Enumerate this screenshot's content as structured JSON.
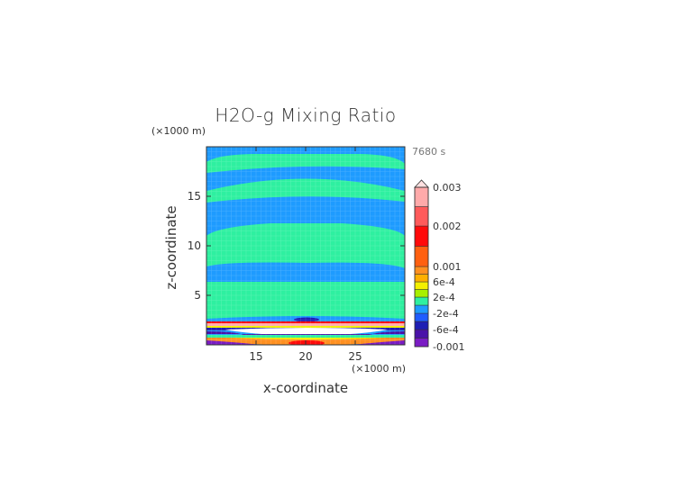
{
  "chart_data": {
    "type": "heatmap",
    "subtype": "filled-contour",
    "title": "H2O-g Mixing Ratio",
    "xlabel": "x-coordinate",
    "ylabel": "z-coordinate",
    "x_unit": "(×1000 m)",
    "y_unit": "(×1000 m)",
    "time_label": "7680 s",
    "xlim": [
      10,
      30
    ],
    "ylim": [
      0,
      20
    ],
    "x_ticks": [
      "15",
      "20",
      "25"
    ],
    "x_tick_values": [
      15,
      20,
      25
    ],
    "y_ticks": [
      "5",
      "10",
      "15"
    ],
    "y_tick_values": [
      5,
      10,
      15
    ],
    "colorbar": {
      "labels": [
        "0.003",
        "0.002",
        "0.001",
        "6e-4",
        "2e-4",
        "-2e-4",
        "-6e-4",
        "-0.001"
      ],
      "label_values": [
        0.003,
        0.002,
        0.001,
        0.0006,
        0.0002,
        -0.0002,
        -0.0006,
        -0.001
      ],
      "extend": "max",
      "bands": [
        {
          "from": -0.001,
          "to": -0.0008,
          "color": "#7a1cc4"
        },
        {
          "from": -0.0008,
          "to": -0.0006,
          "color": "#4a12a8"
        },
        {
          "from": -0.0006,
          "to": -0.0004,
          "color": "#1e1eb4"
        },
        {
          "from": -0.0004,
          "to": -0.0002,
          "color": "#1f5cff"
        },
        {
          "from": -0.0002,
          "to": 0.0,
          "color": "#1e9bff"
        },
        {
          "from": 0.0,
          "to": 0.0002,
          "color": "#2ef0a0"
        },
        {
          "from": 0.0002,
          "to": 0.0004,
          "color": "#a8f000"
        },
        {
          "from": 0.0004,
          "to": 0.0006,
          "color": "#f4f000"
        },
        {
          "from": 0.0006,
          "to": 0.0008,
          "color": "#ffb000"
        },
        {
          "from": 0.0008,
          "to": 0.001,
          "color": "#ff9020"
        },
        {
          "from": 0.001,
          "to": 0.0015,
          "color": "#ff6010"
        },
        {
          "from": 0.0015,
          "to": 0.002,
          "color": "#ff0a0a"
        },
        {
          "from": 0.002,
          "to": 0.0025,
          "color": "#ff5a5a"
        },
        {
          "from": 0.0025,
          "to": 0.003,
          "color": "#ffaaaa"
        }
      ]
    },
    "description_fields": {
      "dominant_positive": "#2ef0a0",
      "dominant_negative": "#1e9bff"
    }
  }
}
